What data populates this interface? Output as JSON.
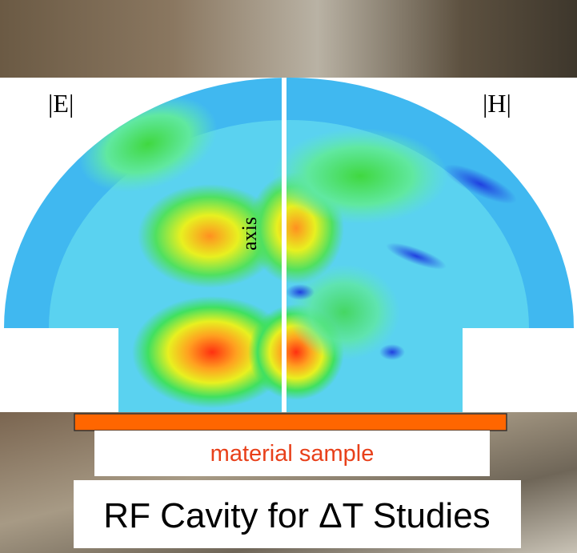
{
  "labels": {
    "e_field": "|E|",
    "h_field": "|H|",
    "axis": "axis"
  },
  "sample_label": "material sample",
  "title": "RF Cavity for ΔT Studies"
}
